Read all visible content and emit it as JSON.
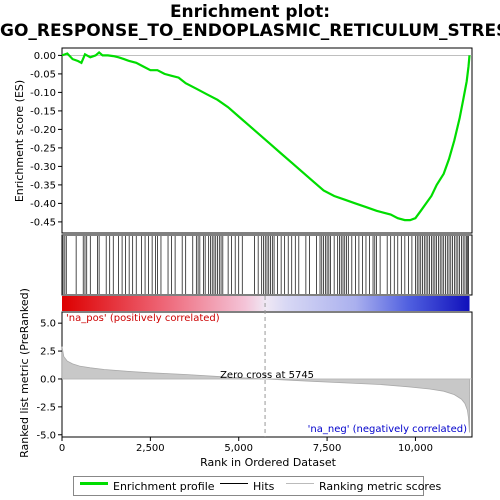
{
  "title_line1": "Enrichment plot:",
  "title_line2": "GO_RESPONSE_TO_ENDOPLASMIC_RETICULUM_STRESS",
  "chart_data": {
    "type": "line",
    "es_panel": {
      "ylabel": "Enrichment score (ES)",
      "ylim": [
        -0.48,
        0.02
      ],
      "yticks": [
        "0.00",
        "-0.05",
        "-0.10",
        "-0.15",
        "-0.20",
        "-0.25",
        "-0.30",
        "-0.35",
        "-0.40",
        "-0.45"
      ],
      "ytick_values": [
        0.0,
        -0.05,
        -0.1,
        -0.15,
        -0.2,
        -0.25,
        -0.3,
        -0.35,
        -0.4,
        -0.45
      ],
      "series": [
        {
          "color": "#00dd00",
          "x": [
            0,
            150,
            300,
            450,
            550,
            650,
            800,
            950,
            1050,
            1150,
            1300,
            1450,
            1600,
            1750,
            1900,
            2100,
            2300,
            2500,
            2700,
            2900,
            3100,
            3300,
            3500,
            3800,
            4100,
            4400,
            4700,
            5000,
            5300,
            5600,
            5900,
            6200,
            6500,
            6800,
            7100,
            7400,
            7700,
            8000,
            8300,
            8600,
            8900,
            9100,
            9300,
            9500,
            9700,
            9850,
            10000,
            10150,
            10300,
            10450,
            10600,
            10800,
            10950,
            11100,
            11250,
            11350,
            11450,
            11500,
            11530
          ],
          "y": [
            0.0,
            0.005,
            -0.01,
            -0.015,
            -0.02,
            0.003,
            -0.005,
            0.0,
            0.008,
            0.0,
            0.0,
            -0.002,
            -0.005,
            -0.01,
            -0.015,
            -0.02,
            -0.03,
            -0.04,
            -0.04,
            -0.05,
            -0.055,
            -0.06,
            -0.075,
            -0.09,
            -0.105,
            -0.12,
            -0.14,
            -0.165,
            -0.19,
            -0.215,
            -0.24,
            -0.265,
            -0.29,
            -0.315,
            -0.34,
            -0.365,
            -0.38,
            -0.39,
            -0.4,
            -0.41,
            -0.42,
            -0.425,
            -0.43,
            -0.44,
            -0.445,
            -0.445,
            -0.44,
            -0.42,
            -0.4,
            -0.38,
            -0.35,
            -0.32,
            -0.28,
            -0.23,
            -0.17,
            -0.12,
            -0.07,
            -0.03,
            0.0
          ]
        }
      ]
    },
    "hits": {
      "description_color": "#000000",
      "positions": [
        30,
        80,
        120,
        400,
        600,
        650,
        700,
        800,
        1000,
        1050,
        1250,
        1350,
        1450,
        1600,
        1700,
        1800,
        1900,
        2000,
        2100,
        2250,
        2350,
        2450,
        2550,
        2650,
        2700,
        2800,
        3000,
        3100,
        3200,
        3400,
        3500,
        3700,
        3800,
        3850,
        3900,
        4000,
        4050,
        4150,
        4200,
        4250,
        4300,
        4350,
        4400,
        4450,
        4500,
        4550,
        4700,
        4800,
        4900,
        5000,
        5100,
        5450,
        5550,
        5650,
        5700,
        5750,
        5800,
        5850,
        5900,
        5950,
        6000,
        6100,
        6200,
        6300,
        6400,
        6500,
        6600,
        6700,
        6900,
        7000,
        7200,
        7300,
        7350,
        7400,
        7450,
        7500,
        7550,
        7600,
        7700,
        7800,
        7850,
        7900,
        7950,
        8000,
        8050,
        8100,
        8200,
        8300,
        8400,
        8500,
        8600,
        8700,
        8800,
        8850,
        8900,
        9000,
        9200,
        9300,
        9400,
        9500,
        9600,
        9700,
        9800,
        9900,
        10000,
        10050,
        10100,
        10150,
        10200,
        10250,
        10300,
        10350,
        10400,
        10450,
        10500,
        10550,
        10600,
        10650,
        10700,
        10750,
        10800,
        10850,
        10900,
        10950,
        11000,
        11050,
        11100,
        11150,
        11200,
        11250,
        11300,
        11350,
        11400,
        11450,
        11480,
        11500
      ]
    },
    "ranked_panel": {
      "ylabel": "Ranked list metric (PreRanked)",
      "xlabel": "Rank in Ordered Dataset",
      "ylim": [
        -5.2,
        6.0
      ],
      "yticks": [
        "5.0",
        "2.5",
        "0.0",
        "-2.5",
        "-5.0"
      ],
      "ytick_values": [
        5.0,
        2.5,
        0.0,
        -2.5,
        -5.0
      ],
      "xlim": [
        0,
        11600
      ],
      "xticks": [
        "0",
        "2,500",
        "5,000",
        "7,500",
        "10,000"
      ],
      "xtick_values": [
        0,
        2500,
        5000,
        7500,
        10000
      ],
      "metric_x": [
        0,
        50,
        150,
        300,
        500,
        800,
        1200,
        1800,
        2500,
        3500,
        4500,
        5745,
        7000,
        8000,
        9000,
        9800,
        10400,
        10800,
        11100,
        11300,
        11400,
        11470,
        11500,
        11530
      ],
      "metric_y": [
        2.9,
        2.0,
        1.6,
        1.35,
        1.15,
        1.0,
        0.85,
        0.7,
        0.55,
        0.4,
        0.2,
        0.0,
        -0.2,
        -0.35,
        -0.5,
        -0.7,
        -0.9,
        -1.1,
        -1.4,
        -1.8,
        -2.2,
        -2.8,
        -3.5,
        -4.8
      ],
      "zero_cross_x": 5745,
      "zero_cross_label": "Zero cross at 5745",
      "pos_label": "'na_pos' (positively correlated)",
      "neg_label": "'na_neg' (negatively correlated)",
      "pos_color": "#cc0000",
      "neg_color": "#0000cc"
    },
    "legend": {
      "placement": "bottom",
      "items": [
        {
          "label": "Enrichment profile",
          "color": "#00dd00"
        },
        {
          "label": "Hits",
          "color": "#000000"
        },
        {
          "label": "Ranking metric scores",
          "color": "#bbbbbb"
        }
      ]
    }
  }
}
